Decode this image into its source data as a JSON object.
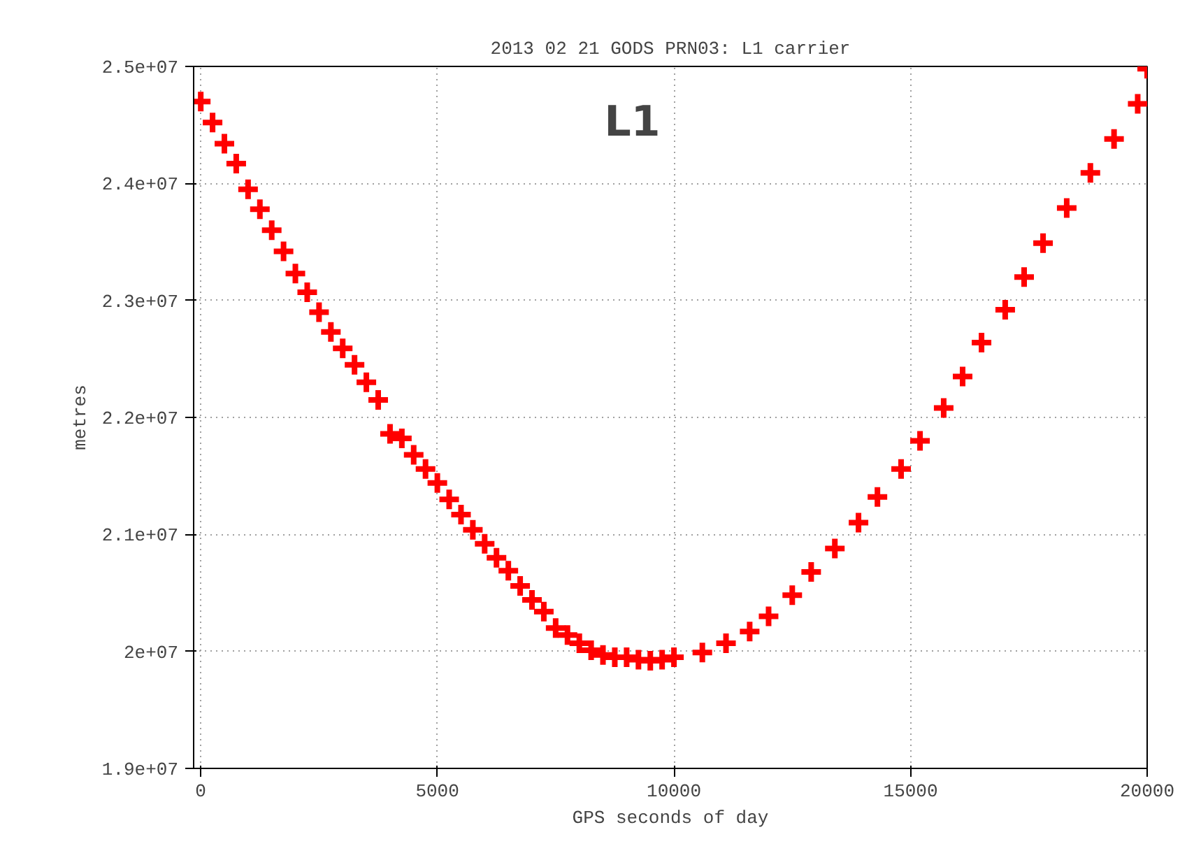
{
  "chart_data": {
    "type": "scatter",
    "title": "2013 02 21 GODS PRN03: L1 carrier",
    "xlabel": "GPS seconds of day",
    "ylabel": "metres",
    "annotations": [
      "L1"
    ],
    "xlim": [
      -150,
      20000
    ],
    "ylim": [
      19000000,
      25000000
    ],
    "xticks": [
      0,
      5000,
      10000,
      15000,
      20000
    ],
    "yticks": [
      {
        "value": 19000000,
        "label": "1.9e+07"
      },
      {
        "value": 20000000,
        "label": "2e+07"
      },
      {
        "value": 21000000,
        "label": "2.1e+07"
      },
      {
        "value": 22000000,
        "label": "2.2e+07"
      },
      {
        "value": 23000000,
        "label": "2.3e+07"
      },
      {
        "value": 24000000,
        "label": "2.4e+07"
      },
      {
        "value": 25000000,
        "label": "2.5e+07"
      }
    ],
    "grid": true,
    "marker": "cross",
    "series": [
      {
        "color": "#ff0000",
        "x": [
          0,
          250,
          500,
          750,
          1000,
          1250,
          1500,
          1750,
          2000,
          2250,
          2500,
          2750,
          3000,
          3250,
          3500,
          3750,
          4000,
          4250,
          4500,
          4750,
          5000,
          5250,
          5500,
          5750,
          6000,
          6250,
          6500,
          6750,
          7000,
          7250,
          7500,
          7750,
          8000,
          8250,
          8500,
          8750,
          9000,
          9250,
          9500,
          9750,
          10000,
          10600,
          11100,
          11600,
          12000,
          12500,
          12900,
          13400,
          13900,
          14300,
          14800,
          15200,
          15700,
          16100,
          16500,
          17000,
          17400,
          17800,
          18300,
          18800,
          19300,
          19800,
          20000
        ],
        "values": [
          24700000,
          24520000,
          24340000,
          24170000,
          23950000,
          23780000,
          23600000,
          23420000,
          23230000,
          23070000,
          22900000,
          22730000,
          22590000,
          22450000,
          22300000,
          22150000,
          21860000,
          21820000,
          21680000,
          21560000,
          21440000,
          21300000,
          21170000,
          21040000,
          20920000,
          20800000,
          20690000,
          20560000,
          20440000,
          20340000,
          20200000,
          20140000,
          20070000,
          20010000,
          19970000,
          19950000,
          19950000,
          19930000,
          19920000,
          19930000,
          19950000,
          19990000,
          20070000,
          20170000,
          20300000,
          20480000,
          20680000,
          20880000,
          21100000,
          21320000,
          21560000,
          21800000,
          22080000,
          22350000,
          22640000,
          22920000,
          23200000,
          23490000,
          23790000,
          24090000,
          24380000,
          24680000,
          24980000
        ]
      }
    ]
  }
}
